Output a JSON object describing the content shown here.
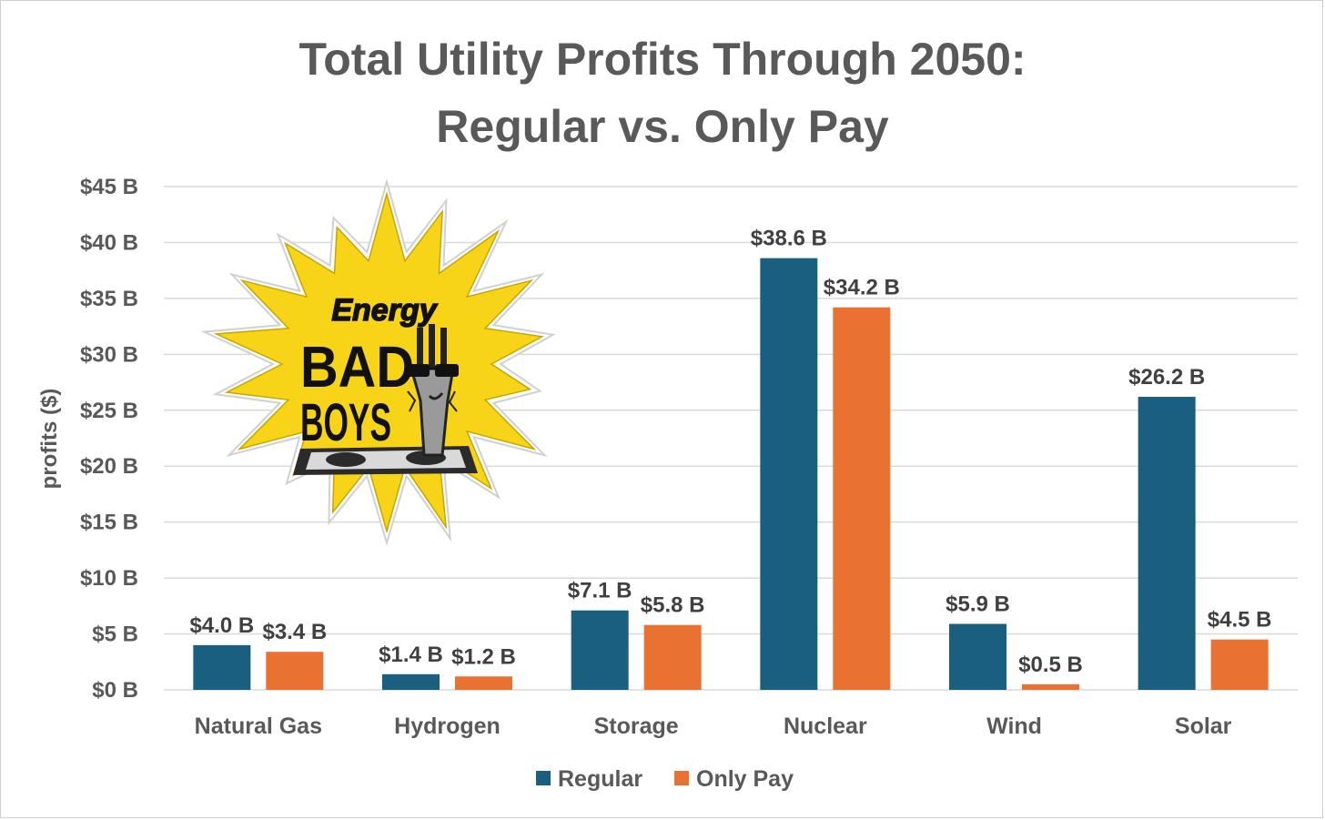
{
  "colors": {
    "regular": "#1a5e80",
    "only_pay": "#e97132",
    "grid": "#d9d9d9",
    "text": "#595959"
  },
  "logo": {
    "line1": "Energy",
    "line2": "BAD",
    "line3": "BOYS"
  },
  "chart_data": {
    "type": "bar",
    "title_line1": "Total Utility Profits Through 2050:",
    "title_line2": "Regular vs. Only Pay",
    "ylabel": "profits ($)",
    "ylim": [
      0,
      45
    ],
    "yticks": [
      0,
      5,
      10,
      15,
      20,
      25,
      30,
      35,
      40,
      45
    ],
    "ytick_labels": [
      "$0 B",
      "$5 B",
      "$10 B",
      "$15 B",
      "$20 B",
      "$25 B",
      "$30 B",
      "$35 B",
      "$40 B",
      "$45 B"
    ],
    "categories": [
      "Natural Gas",
      "Hydrogen",
      "Storage",
      "Nuclear",
      "Wind",
      "Solar"
    ],
    "series": [
      {
        "name": "Regular",
        "values": [
          4.0,
          1.4,
          7.1,
          38.6,
          5.9,
          26.2
        ],
        "labels": [
          "$4.0 B",
          "$1.4 B",
          "$7.1 B",
          "$38.6 B",
          "$5.9 B",
          "$26.2 B"
        ]
      },
      {
        "name": "Only Pay",
        "values": [
          3.4,
          1.2,
          5.8,
          34.2,
          0.5,
          4.5
        ],
        "labels": [
          "$3.4 B",
          "$1.2 B",
          "$5.8 B",
          "$34.2 B",
          "$0.5 B",
          "$4.5 B"
        ]
      }
    ],
    "grid": true,
    "legend_position": "bottom"
  }
}
